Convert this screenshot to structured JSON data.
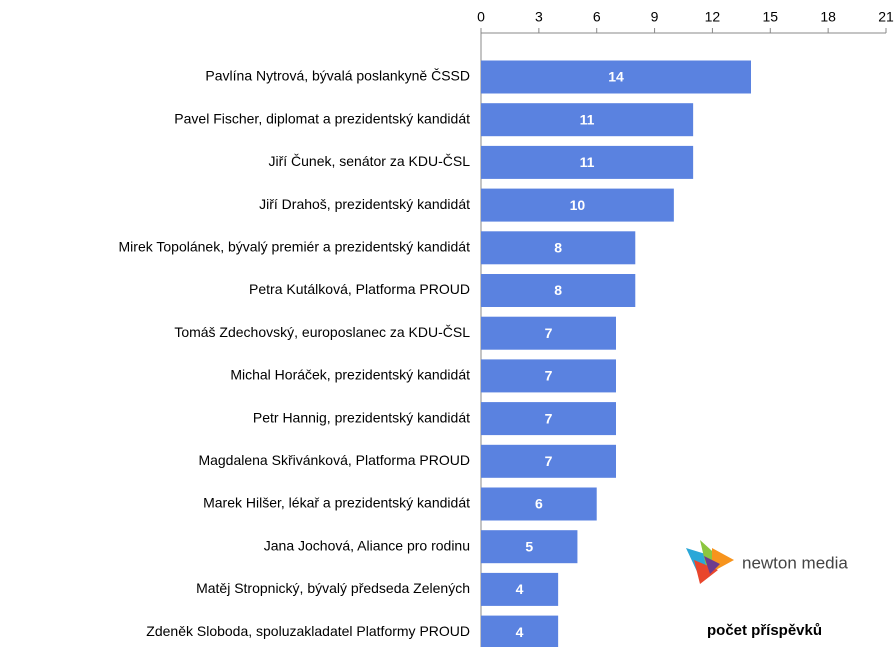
{
  "chart_data": {
    "type": "hbar",
    "categories": [
      "Pavlína Nytrová, bývalá poslankyně ČSSD",
      "Pavel Fischer, diplomat a prezidentský kandidát",
      "Jiří Čunek, senátor za KDU-ČSL",
      "Jiří Drahoš, prezidentský kandidát",
      "Mirek Topolánek, bývalý premiér a prezidentský kandidát",
      "Petra Kutálková, Platforma PROUD",
      "Tomáš Zdechovský, europoslanec za KDU-ČSL",
      "Michal Horáček, prezidentský kandidát",
      "Petr Hannig, prezidentský kandidát",
      "Magdalena Skřivánková, Platforma PROUD",
      "Marek Hilšer, lékař a prezidentský kandidát",
      "Jana Jochová, Aliance pro rodinu",
      "Matěj Stropnický, bývalý předseda Zelených",
      "Zdeněk Sloboda, spoluzakladatel Platformy PROUD"
    ],
    "values": [
      14,
      11,
      11,
      10,
      8,
      8,
      7,
      7,
      7,
      7,
      6,
      5,
      4,
      4
    ],
    "color": "#5a82e0",
    "xlim": [
      0,
      21
    ],
    "xticks": [
      0,
      3,
      6,
      9,
      12,
      15,
      18,
      21
    ],
    "xlabel": "počet příspěvků",
    "watermark": "newton media"
  }
}
